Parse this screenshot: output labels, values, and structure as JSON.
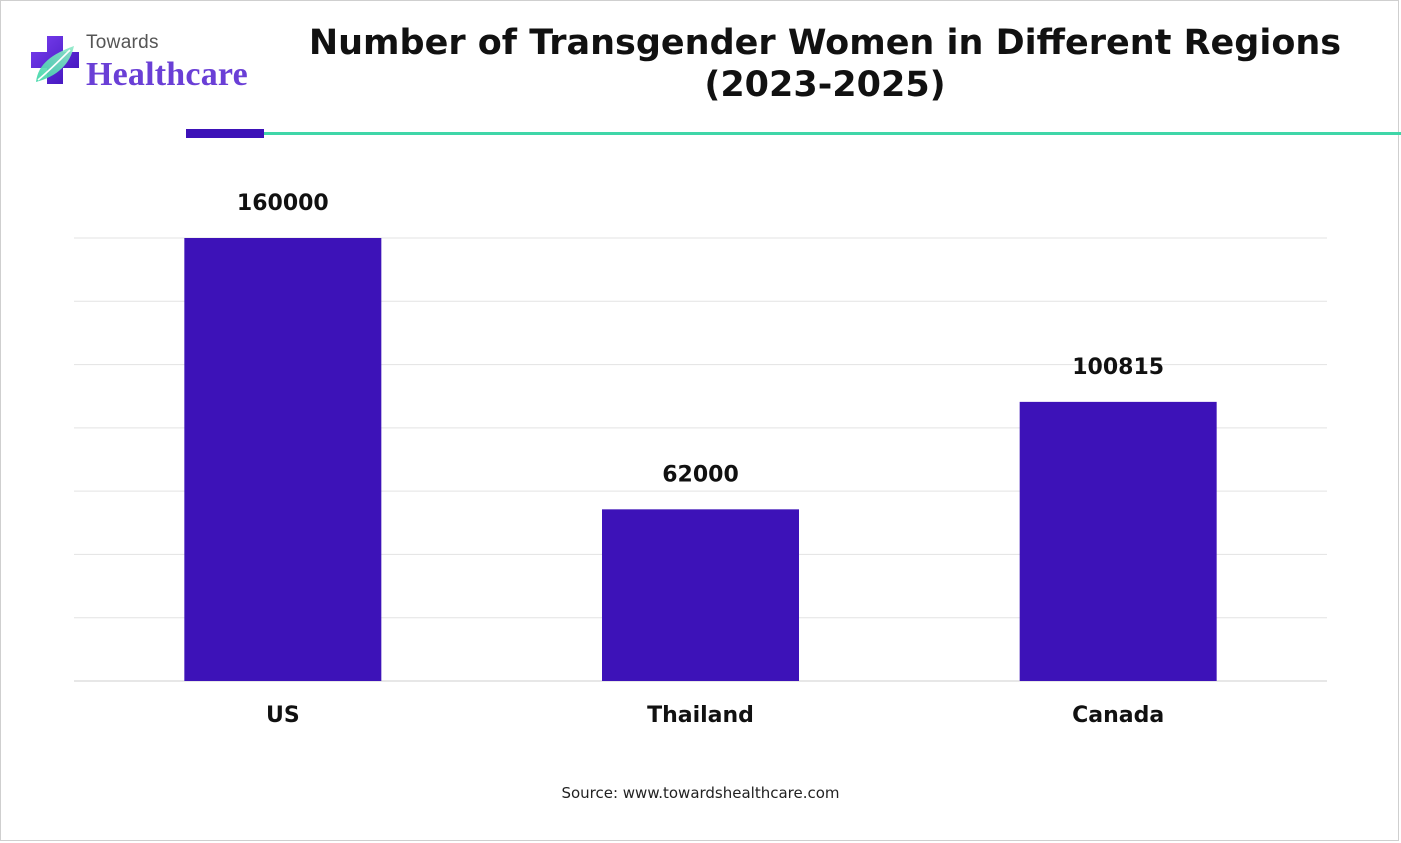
{
  "brand": {
    "top_word": "Towards",
    "main_word": "Healthcare",
    "colors": {
      "purple": "#6a3fd6",
      "teal": "#3fd6a8"
    }
  },
  "chart_data": {
    "type": "bar",
    "title": "Number of Transgender Women in Different Regions (2023-2025)",
    "title_lines": [
      "Number of Transgender Women in Different Regions",
      "(2023-2025)"
    ],
    "categories": [
      "US",
      "Thailand",
      "Canada"
    ],
    "values": [
      160000,
      62000,
      100815
    ],
    "data_labels": [
      "160000",
      "62000",
      "100815"
    ],
    "xlabel": "",
    "ylabel": "",
    "ylim": [
      0,
      160000
    ],
    "grid": true,
    "bar_color": "#3d12b8"
  },
  "source": "Source: www.towardshealthcare.com"
}
